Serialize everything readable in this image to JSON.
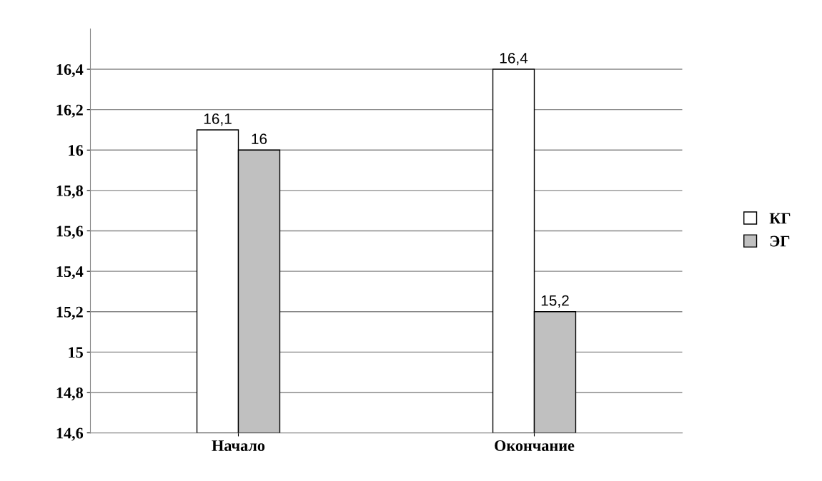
{
  "chart_data": {
    "type": "bar",
    "categories": [
      "Начало",
      "Окончание"
    ],
    "series": [
      {
        "name": "КГ",
        "color": "#ffffff",
        "values": [
          16.1,
          16.4
        ],
        "value_labels": [
          "16,1",
          "16,4"
        ]
      },
      {
        "name": "ЭГ",
        "color": "#c0c0c0",
        "values": [
          16,
          15.2
        ],
        "value_labels": [
          "16",
          "15,2"
        ]
      }
    ],
    "ylim": [
      14.6,
      16.6
    ],
    "yticks": [
      {
        "value": 14.6,
        "label": "14,6"
      },
      {
        "value": 14.8,
        "label": "14,8"
      },
      {
        "value": 15,
        "label": "15"
      },
      {
        "value": 15.2,
        "label": "15,2"
      },
      {
        "value": 15.4,
        "label": "15,4"
      },
      {
        "value": 15.6,
        "label": "15,6"
      },
      {
        "value": 15.8,
        "label": "15,8"
      },
      {
        "value": 16,
        "label": "16"
      },
      {
        "value": 16.2,
        "label": "16,2"
      },
      {
        "value": 16.4,
        "label": "16,4"
      }
    ],
    "grid": "y",
    "legend": "right"
  }
}
